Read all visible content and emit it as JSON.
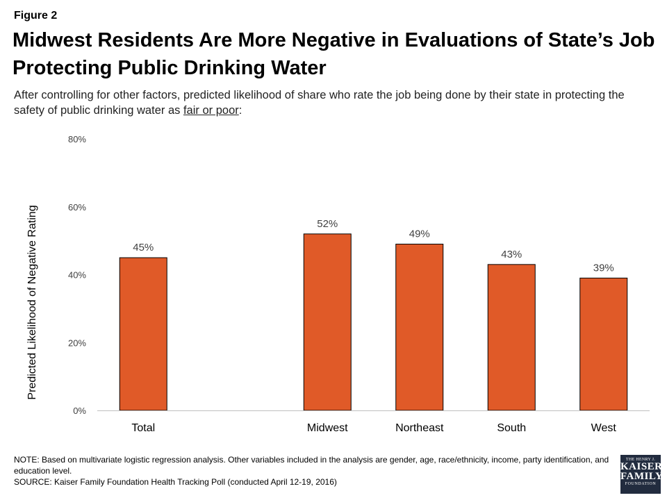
{
  "figure_label": "Figure 2",
  "title": "Midwest Residents Are More Negative in Evaluations of State’s Job Protecting Public Drinking Water",
  "subtitle_pre": "After controlling for other factors, predicted likelihood of share who rate the job being done by their state in protecting the safety of public drinking water as ",
  "subtitle_underlined": "fair or poor",
  "subtitle_post": ":",
  "note_line1": "NOTE: Based on multivariate logistic regression analysis. Other variables included in the analysis are gender, age, race/ethnicity, income, party identification, and education level.",
  "source_line": "SOURCE: Kaiser Family Foundation Health Tracking Poll (conducted April 12-19, 2016)",
  "logo": {
    "line1": "THE HENRY J.",
    "line2a": "KAISER",
    "line2b": "FAMILY",
    "line3": "FOUNDATION"
  },
  "colors": {
    "bar": "#e05a28",
    "bar_stroke": "#000000",
    "axis": "#bfbfbf",
    "logo_bg": "#222c3f"
  },
  "chart_data": {
    "type": "bar",
    "categories": [
      "Total",
      "",
      "Midwest",
      "Northeast",
      "South",
      "West"
    ],
    "values": [
      45,
      null,
      52,
      49,
      43,
      39
    ],
    "data_labels": [
      "45%",
      "",
      "52%",
      "49%",
      "43%",
      "39%"
    ],
    "ylabel": "Predicted Likelihood of Negative Rating",
    "ylim": [
      0,
      80
    ],
    "yticks": [
      0,
      20,
      40,
      60,
      80
    ],
    "ytick_labels": [
      "0%",
      "20%",
      "40%",
      "60%",
      "80%"
    ],
    "grid": false,
    "legend": "none"
  }
}
